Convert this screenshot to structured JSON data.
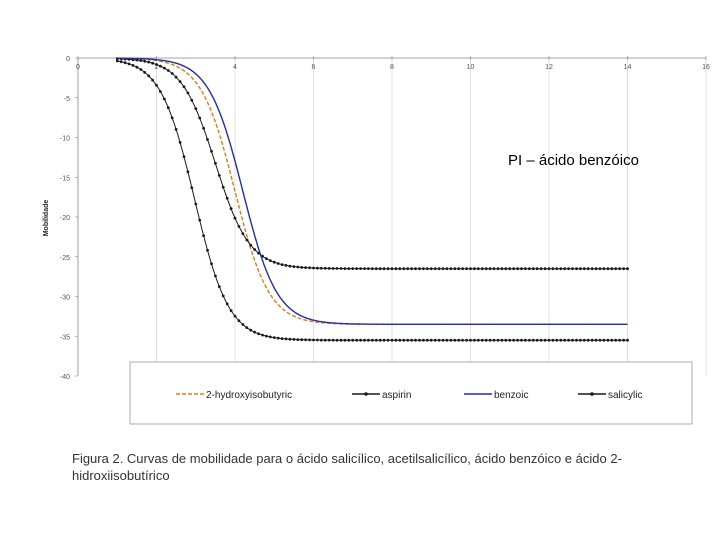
{
  "chart_data": {
    "type": "line",
    "ylabel": "Mobilidade",
    "xlim": [
      0,
      16
    ],
    "ylim": [
      -40,
      0
    ],
    "xticks": [
      0,
      2,
      4,
      6,
      8,
      10,
      12,
      14,
      16
    ],
    "yticks": [
      0,
      -5,
      -10,
      -15,
      -20,
      -25,
      -30,
      -35,
      -40
    ],
    "yticklabels": [
      "0",
      "-5",
      "-10",
      "-15",
      "-20",
      "-25",
      "-30",
      "-35",
      "-40"
    ],
    "annotation": "PI – ácido benzóico",
    "series": [
      {
        "name": "2-hydroxyisobutyric",
        "color": "#e07b1a",
        "style": "dashed",
        "limit": -33.5,
        "pKa": 4.0,
        "x_start": 1.0,
        "x_end": 14.0
      },
      {
        "name": "aspirin",
        "color": "#1a1a1a",
        "style": "dotted-line",
        "limit": -26.5,
        "pKa": 3.5,
        "x_start": 1.0,
        "x_end": 14.0
      },
      {
        "name": "benzoic",
        "color": "#1f2fa8",
        "style": "solid",
        "limit": -33.5,
        "pKa": 4.2,
        "x_start": 1.0,
        "x_end": 14.0
      },
      {
        "name": "salicylic",
        "color": "#1a1a1a",
        "style": "dotted-line",
        "limit": -35.5,
        "pKa": 2.97,
        "x_start": 1.0,
        "x_end": 14.0
      }
    ]
  },
  "caption": "Figura 2. Curvas de mobilidade para o ácido salicílico, acetilsalicílico, ácido benzóico e ácido 2-hidroxiisobutírico"
}
